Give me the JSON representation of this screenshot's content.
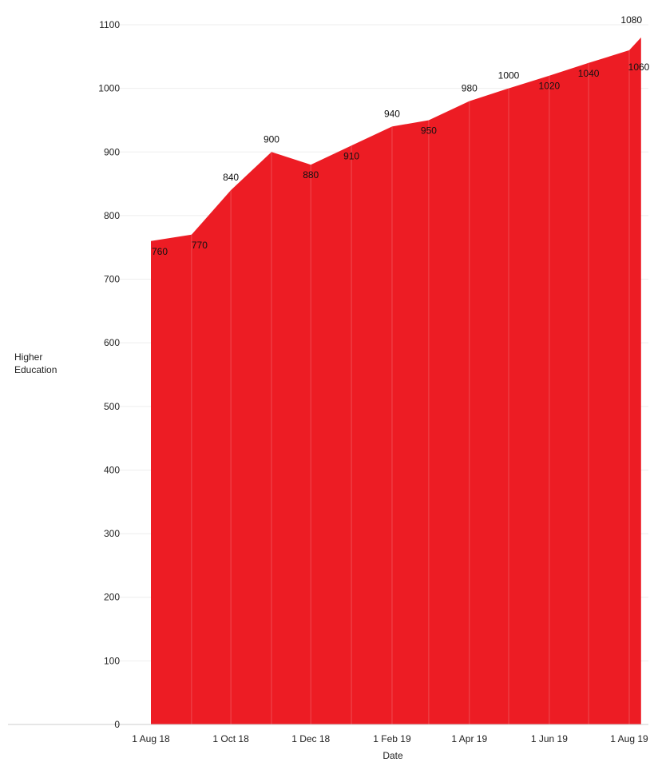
{
  "chart_data": {
    "type": "area",
    "xlabel": "Date",
    "ylabel_lines": [
      "Higher",
      "Education"
    ],
    "x": [
      "2018-08-01",
      "2018-09-01",
      "2018-10-01",
      "2018-11-01",
      "2018-12-01",
      "2019-01-01",
      "2019-02-01",
      "2019-03-01",
      "2019-04-01",
      "2019-05-01",
      "2019-06-01",
      "2019-07-01",
      "2019-08-01",
      "2019-08-10"
    ],
    "values": [
      760,
      770,
      840,
      900,
      880,
      910,
      940,
      950,
      980,
      1000,
      1020,
      1040,
      1060,
      1080
    ],
    "x_ticks": [
      {
        "date": "2018-08-01",
        "label": "1 Aug 18"
      },
      {
        "date": "2018-10-01",
        "label": "1 Oct 18"
      },
      {
        "date": "2018-12-01",
        "label": "1 Dec 18"
      },
      {
        "date": "2019-02-01",
        "label": "1 Feb 19"
      },
      {
        "date": "2019-04-01",
        "label": "1 Apr 19"
      },
      {
        "date": "2019-06-01",
        "label": "1 Jun 19"
      },
      {
        "date": "2019-08-01",
        "label": "1 Aug 19"
      }
    ],
    "y_ticks": [
      0,
      100,
      200,
      300,
      400,
      500,
      600,
      700,
      800,
      900,
      1000,
      1100
    ],
    "ylim": [
      0,
      1100
    ],
    "grid": true,
    "colors": {
      "fill": "#ed1c24",
      "grid": "#eeeeee",
      "axis": "#cccccc",
      "separator": "#f06a70"
    }
  }
}
